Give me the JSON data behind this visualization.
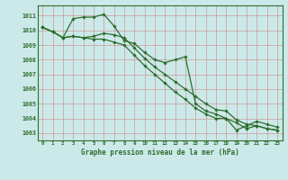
{
  "title": "Graphe pression niveau de la mer (hPa)",
  "background_color": "#cce9e9",
  "grid_color": "#b0cccc",
  "line_color": "#2d6e2d",
  "x_ticks": [
    0,
    1,
    2,
    3,
    4,
    5,
    6,
    7,
    8,
    9,
    10,
    11,
    12,
    13,
    14,
    15,
    16,
    17,
    18,
    19,
    20,
    21,
    22,
    23
  ],
  "ylim": [
    1002.5,
    1011.7
  ],
  "yticks": [
    1003,
    1004,
    1005,
    1006,
    1007,
    1008,
    1009,
    1010,
    1011
  ],
  "series": [
    [
      1010.2,
      1009.9,
      1009.5,
      1010.8,
      1010.9,
      1010.9,
      1011.1,
      1010.3,
      1009.3,
      1009.1,
      1008.5,
      1008.0,
      1007.8,
      1008.0,
      1008.2,
      1005.0,
      1004.5,
      1004.3,
      1004.0,
      1003.2,
      1003.5,
      1003.8,
      1003.6,
      1003.4
    ],
    [
      1010.2,
      1009.9,
      1009.5,
      1009.6,
      1009.5,
      1009.6,
      1009.8,
      1009.7,
      1009.5,
      1008.8,
      1008.1,
      1007.5,
      1007.0,
      1006.5,
      1006.0,
      1005.5,
      1005.0,
      1004.6,
      1004.5,
      1003.9,
      1003.6,
      1003.5,
      1003.3,
      1003.2
    ],
    [
      1010.2,
      1009.9,
      1009.5,
      1009.6,
      1009.5,
      1009.4,
      1009.4,
      1009.2,
      1009.0,
      1008.3,
      1007.6,
      1007.0,
      1006.4,
      1005.8,
      1005.3,
      1004.7,
      1004.3,
      1004.0,
      1004.0,
      1003.7,
      1003.3,
      1003.5,
      1003.3,
      1003.2
    ]
  ]
}
